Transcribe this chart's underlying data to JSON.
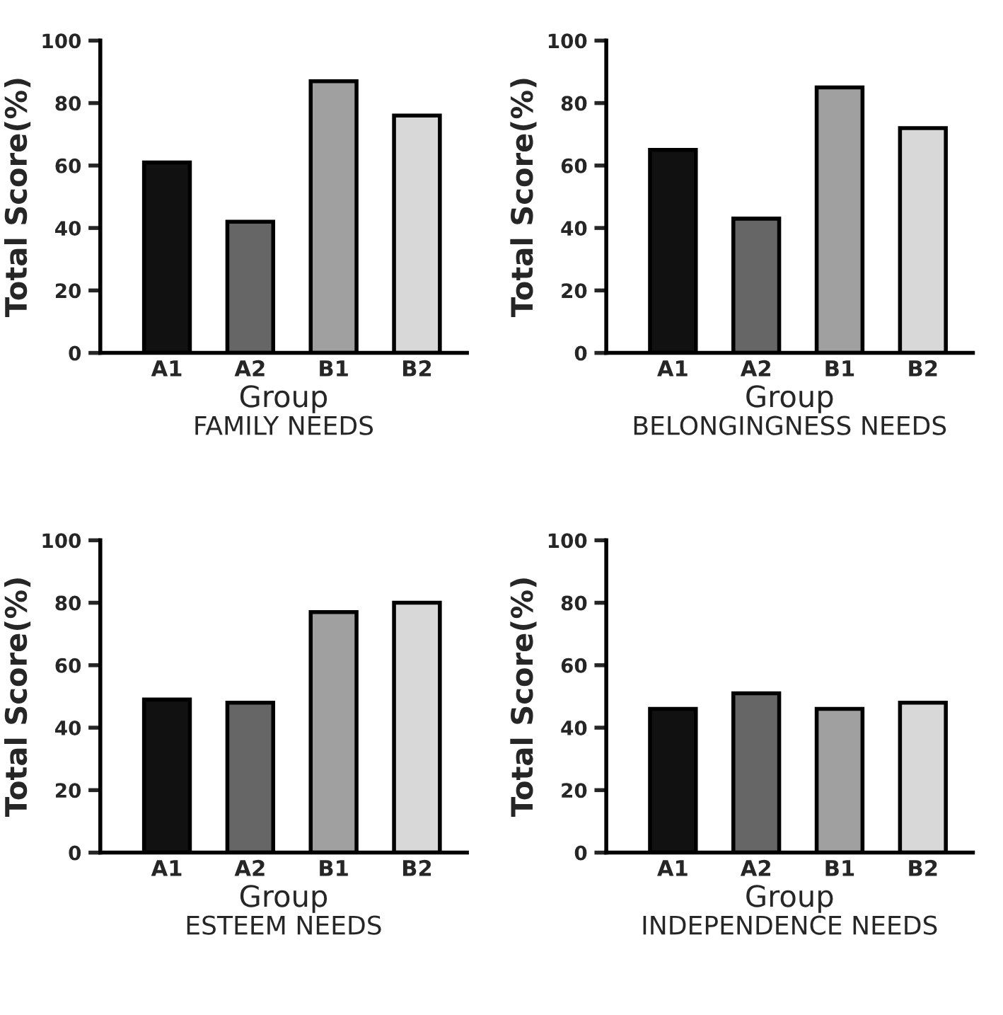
{
  "chart_data": [
    {
      "type": "bar",
      "title": "FAMILY NEEDS",
      "xlabel": "Group",
      "ylabel": "Total Score(%)",
      "categories": [
        "A1",
        "A2",
        "B1",
        "B2"
      ],
      "values": [
        61,
        42,
        87,
        76
      ],
      "colors": [
        "#111111",
        "#666666",
        "#a0a0a0",
        "#d8d8d8"
      ],
      "ylim": [
        0,
        100
      ],
      "yticks": [
        0,
        20,
        40,
        60,
        80,
        100
      ],
      "grid": false
    },
    {
      "type": "bar",
      "title": "BELONGINGNESS NEEDS",
      "xlabel": "Group",
      "ylabel": "Total Score(%)",
      "categories": [
        "A1",
        "A2",
        "B1",
        "B2"
      ],
      "values": [
        65,
        43,
        85,
        72
      ],
      "colors": [
        "#111111",
        "#666666",
        "#a0a0a0",
        "#d8d8d8"
      ],
      "ylim": [
        0,
        100
      ],
      "yticks": [
        0,
        20,
        40,
        60,
        80,
        100
      ],
      "grid": false
    },
    {
      "type": "bar",
      "title": "ESTEEM NEEDS",
      "xlabel": "Group",
      "ylabel": "Total Score(%)",
      "categories": [
        "A1",
        "A2",
        "B1",
        "B2"
      ],
      "values": [
        49,
        48,
        77,
        80
      ],
      "colors": [
        "#111111",
        "#666666",
        "#a0a0a0",
        "#d8d8d8"
      ],
      "ylim": [
        0,
        100
      ],
      "yticks": [
        0,
        20,
        40,
        60,
        80,
        100
      ],
      "grid": false
    },
    {
      "type": "bar",
      "title": "INDEPENDENCE NEEDS",
      "xlabel": "Group",
      "ylabel": "Total Score(%)",
      "categories": [
        "A1",
        "A2",
        "B1",
        "B2"
      ],
      "values": [
        46,
        51,
        46,
        48
      ],
      "colors": [
        "#111111",
        "#666666",
        "#a0a0a0",
        "#d8d8d8"
      ],
      "ylim": [
        0,
        100
      ],
      "yticks": [
        0,
        20,
        40,
        60,
        80,
        100
      ],
      "grid": false
    }
  ]
}
